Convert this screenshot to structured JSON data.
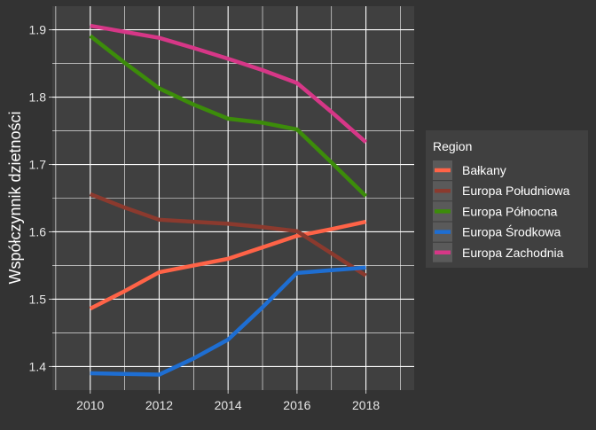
{
  "chart_data": {
    "type": "line",
    "ylabel": "Współczynnik dzietności",
    "xlabel": "",
    "x": [
      2010,
      2011,
      2012,
      2013,
      2014,
      2015,
      2016,
      2017,
      2018
    ],
    "x_ticks": [
      "2010",
      "2012",
      "2014",
      "2016",
      "2018"
    ],
    "y_ticks": [
      "1.4",
      "1.5",
      "1.6",
      "1.7",
      "1.8",
      "1.9"
    ],
    "xlim": [
      2008.9,
      2019.4
    ],
    "ylim": [
      1.365,
      1.935
    ],
    "grid": true,
    "legend": {
      "title": "Region",
      "position": "right"
    },
    "series": [
      {
        "name": "Bałkany",
        "color": "#FF6347",
        "values": [
          1.486,
          1.512,
          1.54,
          1.55,
          1.56,
          1.577,
          1.594,
          1.604,
          1.615
        ]
      },
      {
        "name": "Europa Południowa",
        "color": "#8B3A2E",
        "values": [
          1.656,
          1.636,
          1.618,
          1.615,
          1.612,
          1.607,
          1.601,
          1.568,
          1.535
        ]
      },
      {
        "name": "Europa Północna",
        "color": "#3C8C0A",
        "values": [
          1.891,
          1.851,
          1.813,
          1.789,
          1.768,
          1.762,
          1.752,
          1.703,
          1.653
        ]
      },
      {
        "name": "Europa Środkowa",
        "color": "#1E6ED2",
        "values": [
          1.39,
          1.389,
          1.388,
          1.412,
          1.44,
          1.488,
          1.539,
          1.543,
          1.547
        ]
      },
      {
        "name": "Europa Zachodnia",
        "color": "#D63787",
        "values": [
          1.906,
          1.897,
          1.888,
          1.873,
          1.857,
          1.84,
          1.821,
          1.778,
          1.733
        ]
      }
    ]
  }
}
